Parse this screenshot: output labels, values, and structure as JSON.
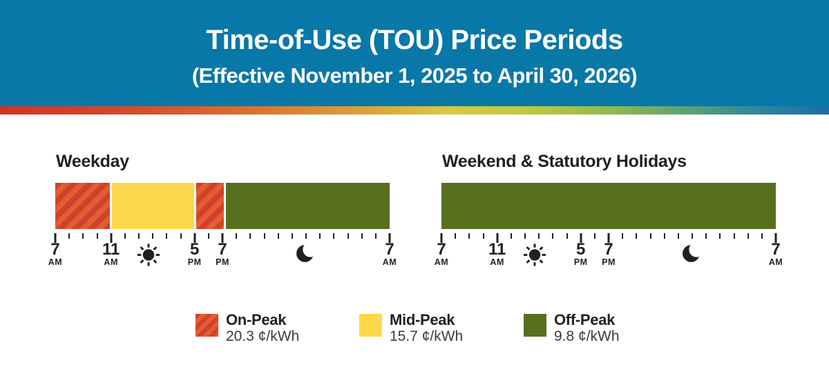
{
  "header": {
    "title": "Time-of-Use (TOU) Price Periods",
    "subtitle": "(Effective November 1, 2025 to April 30, 2026)"
  },
  "colors": {
    "header_bg": "#0878A8",
    "on_peak": "#D2402C",
    "on_peak_stripe": "#E05E31",
    "mid_peak": "#FED84B",
    "off_peak": "#57701E",
    "ink": "#231F20",
    "rate_text": "#3E3A3B"
  },
  "chart_data": [
    {
      "type": "bar",
      "title": "Weekday",
      "axis_start": "7 AM",
      "axis_end": "7 AM",
      "total_hours": 24,
      "tick_interval_hours": 1,
      "major_tick_hours": [
        0,
        4,
        10,
        12,
        24
      ],
      "labels": [
        {
          "hour": 0,
          "num": "7",
          "meridiem": "AM"
        },
        {
          "hour": 4,
          "num": "11",
          "meridiem": "AM"
        },
        {
          "hour": 10,
          "num": "5",
          "meridiem": "PM"
        },
        {
          "hour": 12,
          "num": "7",
          "meridiem": "PM"
        },
        {
          "hour": 24,
          "num": "7",
          "meridiem": "AM"
        }
      ],
      "icons": [
        {
          "type": "sun",
          "hour": 6.7
        },
        {
          "type": "moon",
          "hour": 18
        }
      ],
      "segments": [
        {
          "period": "On-Peak",
          "start": "7 AM",
          "end": "11 AM",
          "hours": 4
        },
        {
          "period": "Mid-Peak",
          "start": "11 AM",
          "end": "5 PM",
          "hours": 6
        },
        {
          "period": "On-Peak",
          "start": "5 PM",
          "end": "7 PM",
          "hours": 2
        },
        {
          "period": "Off-Peak",
          "start": "7 PM",
          "end": "7 AM",
          "hours": 12
        }
      ]
    },
    {
      "type": "bar",
      "title": "Weekend & Statutory Holidays",
      "axis_start": "7 AM",
      "axis_end": "7 AM",
      "total_hours": 24,
      "tick_interval_hours": 1,
      "major_tick_hours": [
        0,
        4,
        10,
        12,
        24
      ],
      "labels": [
        {
          "hour": 0,
          "num": "7",
          "meridiem": "AM"
        },
        {
          "hour": 4,
          "num": "11",
          "meridiem": "AM"
        },
        {
          "hour": 10,
          "num": "5",
          "meridiem": "PM"
        },
        {
          "hour": 12,
          "num": "7",
          "meridiem": "PM"
        },
        {
          "hour": 24,
          "num": "7",
          "meridiem": "AM"
        }
      ],
      "icons": [
        {
          "type": "sun",
          "hour": 6.7
        },
        {
          "type": "moon",
          "hour": 18
        }
      ],
      "segments": [
        {
          "period": "Off-Peak",
          "start": "7 AM",
          "end": "7 AM",
          "hours": 24
        }
      ]
    }
  ],
  "legend": {
    "items": [
      {
        "label": "On-Peak",
        "rate": "20.3 ¢/kWh"
      },
      {
        "label": "Mid-Peak",
        "rate": "15.7 ¢/kWh"
      },
      {
        "label": "Off-Peak",
        "rate": "9.8 ¢/kWh"
      }
    ]
  }
}
